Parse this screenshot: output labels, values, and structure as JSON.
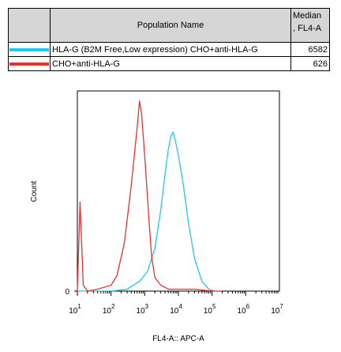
{
  "legend": {
    "header_name": "Population Name",
    "header_median_line1": "Median",
    "header_median_line2": ", FL4-A",
    "rows": [
      {
        "name": "HLA-G (B2M Free,Low expression) CHO+anti-HLA-G",
        "median": "6582",
        "color": "#1ec8f0"
      },
      {
        "name": "CHO+anti-HLA-G",
        "median": "626",
        "color": "#e8312f"
      }
    ]
  },
  "chart_data": {
    "type": "line",
    "title": "",
    "xlabel": "FL4-A:: APC-A",
    "ylabel": "Count",
    "x_scale": "log",
    "xlim": [
      10,
      10000000
    ],
    "ylim": [
      0,
      100
    ],
    "y_tick_labels": [
      "0"
    ],
    "x_tick_labels": [
      {
        "base": "10",
        "exp": "1"
      },
      {
        "base": "10",
        "exp": "2"
      },
      {
        "base": "10",
        "exp": "3"
      },
      {
        "base": "10",
        "exp": "4"
      },
      {
        "base": "10",
        "exp": "5"
      },
      {
        "base": "10",
        "exp": "6"
      },
      {
        "base": "10",
        "exp": "7"
      }
    ],
    "x_tick_values": [
      10,
      100,
      1000,
      10000,
      100000,
      1000000,
      10000000
    ],
    "grid": false,
    "series": [
      {
        "name": "HLA-G (B2M Free,Low expression) CHO+anti-HLA-G",
        "color": "#1ec8f0",
        "x": [
          10,
          100,
          300,
          700,
          1200,
          2000,
          3000,
          4000,
          5000,
          6000,
          7000,
          8000,
          10000,
          14000,
          20000,
          30000,
          50000,
          80000,
          120000,
          200000
        ],
        "y": [
          0,
          0,
          1,
          5,
          10,
          22,
          42,
          60,
          73,
          80,
          82,
          78,
          70,
          55,
          35,
          17,
          5,
          1,
          0,
          0
        ]
      },
      {
        "name": "CHO+anti-HLA-G",
        "color": "#e8312f",
        "x": [
          10,
          12,
          15,
          20,
          40,
          100,
          150,
          250,
          400,
          600,
          700,
          800,
          1000,
          1300,
          1600,
          2000,
          3000,
          5000,
          10000,
          30000,
          100000,
          200000
        ],
        "y": [
          0,
          46,
          3,
          0,
          1,
          3,
          8,
          25,
          55,
          85,
          98,
          92,
          70,
          40,
          18,
          7,
          3,
          1,
          1,
          1,
          0,
          0
        ]
      }
    ]
  }
}
